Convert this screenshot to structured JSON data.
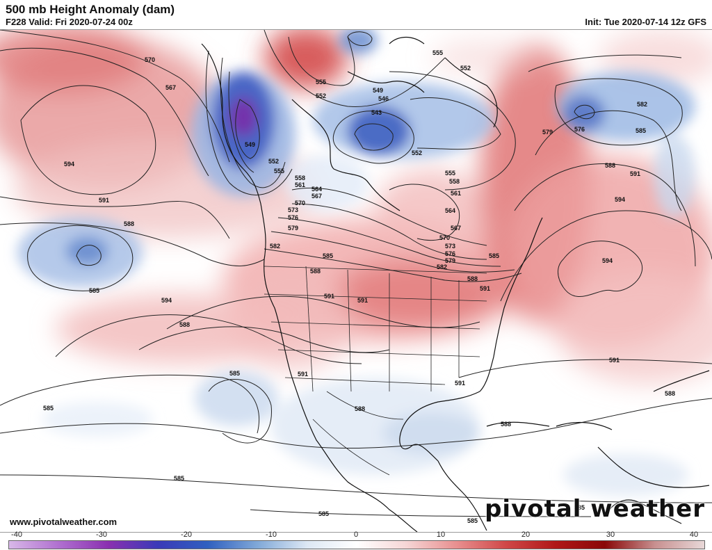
{
  "header": {
    "title": "500 mb Height Anomaly (dam)",
    "valid": "F228 Valid: Fri 2020-07-24 00z",
    "init": "Init: Tue 2020-07-14 12z GFS"
  },
  "footer": {
    "website": "www.pivotalweather.com",
    "brand": "pivotal weather"
  },
  "colorbar": {
    "ticks": [
      "-40",
      "-30",
      "-20",
      "-10",
      "0",
      "10",
      "20",
      "30",
      "40"
    ],
    "colors": [
      "#d8b8e8",
      "#b070d0",
      "#8a30b0",
      "#3a3ab8",
      "#3060c0",
      "#80a8d8",
      "#dde8f4",
      "#ffffff",
      "#f6d6d6",
      "#e89090",
      "#d04848",
      "#b01818",
      "#8a0808",
      "#c89090",
      "#e8d8d8"
    ]
  },
  "contour_labels": [
    "570",
    "567",
    "594",
    "591",
    "588",
    "585",
    "549",
    "552",
    "555",
    "558",
    "561",
    "564",
    "567",
    "570",
    "573",
    "576",
    "579",
    "582",
    "555",
    "552",
    "549",
    "546",
    "543",
    "552",
    "555",
    "558",
    "561",
    "564",
    "567",
    "570",
    "573",
    "576",
    "579",
    "582",
    "585",
    "555",
    "552",
    "582",
    "576",
    "579",
    "585",
    "588",
    "591",
    "594",
    "594",
    "591",
    "588",
    "585",
    "588",
    "591",
    "591",
    "594",
    "588",
    "585",
    "591",
    "588",
    "591",
    "585",
    "588",
    "585",
    "585",
    "585",
    "585",
    "588",
    "591"
  ],
  "colors": {
    "positive": "#d84848",
    "negative": "#3a5ec0",
    "deep_negative": "#7a2aa8",
    "land": "#111111"
  }
}
